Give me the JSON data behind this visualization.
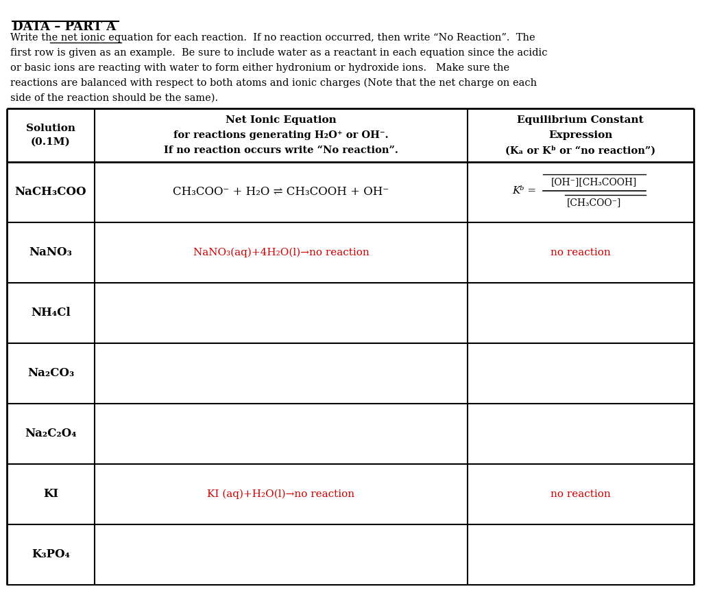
{
  "title": "DATA – PART A",
  "intro_text": [
    "Write the net ionic equation for each reaction.  If no reaction occurred, then write “No Reaction”.  The",
    "first row is given as an example.  Be sure to include water as a reactant in each equation since the acidic",
    "or basic ions are reacting with water to form either hydronium or hydroxide ions.   Make sure the",
    "reactions are balanced with respect to both atoms and ionic charges (Note that the net charge on each",
    "side of the reaction should be the same)."
  ],
  "underline_phrase": "net ionic equation",
  "col_headers": [
    "Solution\n(0.1M)",
    "Net Ionic Equation\nfor reactions generating H₂O⁺ or OH⁻.\nIf no reaction occurs write “No reaction”.",
    "Equilibrium Constant\nExpression\n(Ka or Kb or “no reaction”)"
  ],
  "rows": [
    {
      "solution": "NaCH₃COO",
      "equation": "CH₃COO⁻ + H₂O ⇌ CH₃COOH + OH⁻",
      "equilibrium": "Kb = [OH⁻][CH₃COOH] / [CH₃COO⁻]",
      "eq_color": "black",
      "sol_color": "black"
    },
    {
      "solution": "NaNO₃",
      "equation": "NaNO₃(aq)+4H₂O(l)→no reaction",
      "equilibrium": "no reaction",
      "eq_color": "red",
      "sol_color": "black"
    },
    {
      "solution": "NH₄Cl",
      "equation": "",
      "equilibrium": "",
      "eq_color": "black",
      "sol_color": "black"
    },
    {
      "solution": "Na₂CO₃",
      "equation": "",
      "equilibrium": "",
      "eq_color": "black",
      "sol_color": "black"
    },
    {
      "solution": "Na₂C₂O₄",
      "equation": "",
      "equilibrium": "",
      "eq_color": "black",
      "sol_color": "black"
    },
    {
      "solution": "KI",
      "equation": "KI (aq)+H₂O(l)→no reaction",
      "equilibrium": "no reaction",
      "eq_color": "red",
      "sol_color": "black"
    },
    {
      "solution": "K₃PO₄",
      "equation": "",
      "equilibrium": "",
      "eq_color": "black",
      "sol_color": "black"
    }
  ],
  "bg_color": "#ffffff",
  "text_color": "#000000",
  "red_color": "#cc0000",
  "table_border_color": "#000000",
  "header_bg": "#ffffff"
}
